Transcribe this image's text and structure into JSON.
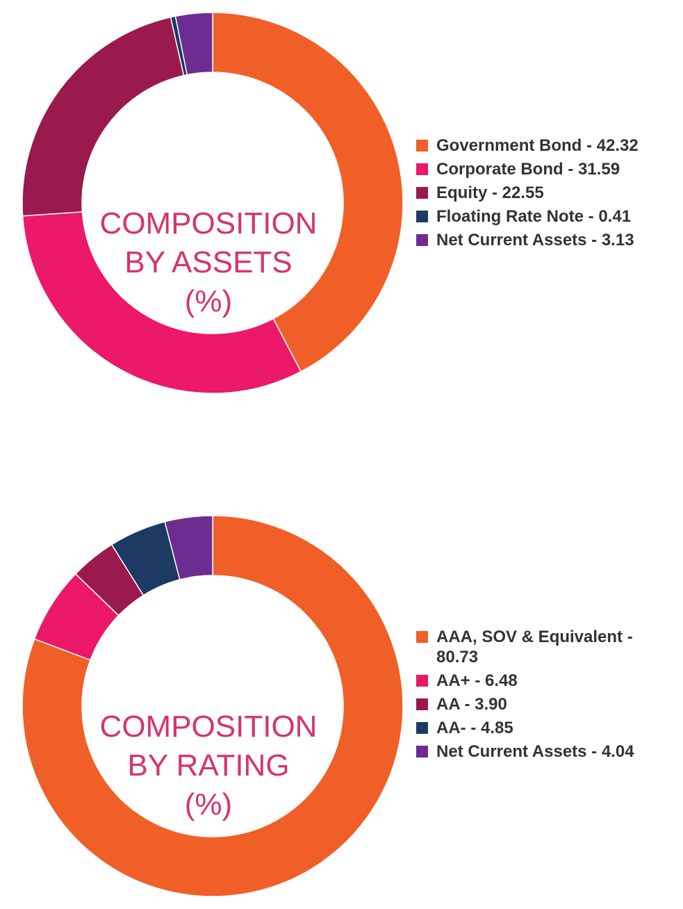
{
  "chart_data": [
    {
      "type": "pie",
      "title_lines": [
        "COMPOSITION",
        "BY ASSETS",
        "(%)"
      ],
      "slices": [
        {
          "label": "Government Bond - 42.32",
          "value": 42.32,
          "color": "#f15f28"
        },
        {
          "label": "Corporate Bond - 31.59",
          "value": 31.59,
          "color": "#ec1869"
        },
        {
          "label": "Equity - 22.55",
          "value": 22.55,
          "color": "#9b1a4e"
        },
        {
          "label": "Floating Rate Note - 0.41",
          "value": 0.41,
          "color": "#1c3a64"
        },
        {
          "label": "Net Current Assets - 3.13",
          "value": 3.13,
          "color": "#6c2c91"
        }
      ]
    },
    {
      "type": "pie",
      "title_lines": [
        "COMPOSITION",
        "BY RATING",
        "(%)"
      ],
      "slices": [
        {
          "label": "AAA, SOV & Equivalent - 80.73",
          "value": 80.73,
          "color": "#f15f28"
        },
        {
          "label": "AA+ - 6.48",
          "value": 6.48,
          "color": "#ec1869"
        },
        {
          "label": "AA - 3.90",
          "value": 3.9,
          "color": "#9b1a4e"
        },
        {
          "label": "AA- - 4.85",
          "value": 4.85,
          "color": "#1c3a64"
        },
        {
          "label": "Net Current Assets - 4.04",
          "value": 4.04,
          "color": "#6c2c91"
        }
      ]
    }
  ]
}
